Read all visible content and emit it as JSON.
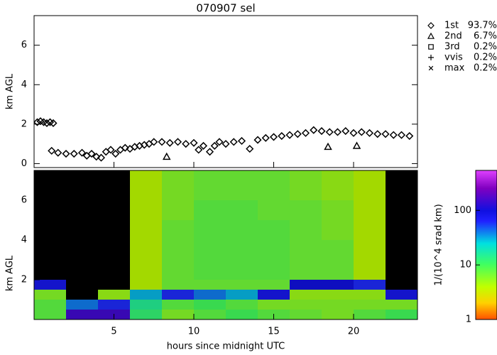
{
  "chart_data": [
    {
      "type": "scatter",
      "title": "070907 sel",
      "ylabel": "km AGL",
      "xlim": [
        0,
        24
      ],
      "xticks": [
        5,
        10,
        15,
        20
      ],
      "ylim": [
        -0.2,
        7.5
      ],
      "yticks": [
        0,
        2,
        4,
        6
      ],
      "series": [
        {
          "name": "1st",
          "share": {
            "value": 93.7,
            "label": "93.7%"
          },
          "marker": "diamond",
          "color": "#000000",
          "x": [
            0.2,
            0.4,
            0.6,
            0.8,
            1.0,
            1.2,
            1.1,
            1.5,
            2.0,
            2.5,
            3.0,
            3.3,
            3.6,
            3.9,
            4.2,
            4.5,
            4.8,
            5.1,
            5.4,
            5.7,
            6.0,
            6.3,
            6.6,
            6.9,
            7.2,
            7.5,
            8.0,
            8.5,
            9.0,
            9.5,
            10.0,
            10.3,
            10.6,
            11.0,
            11.3,
            11.6,
            12.0,
            12.5,
            13.0,
            13.5,
            14.0,
            14.5,
            15.0,
            15.5,
            16.0,
            16.5,
            17.0,
            17.5,
            18.0,
            18.5,
            19.0,
            19.5,
            20.0,
            20.5,
            21.0,
            21.5,
            22.0,
            22.5,
            23.0,
            23.5
          ],
          "values": [
            2.1,
            2.15,
            2.1,
            2.05,
            2.1,
            2.05,
            0.65,
            0.55,
            0.5,
            0.5,
            0.55,
            0.4,
            0.5,
            0.35,
            0.3,
            0.6,
            0.7,
            0.5,
            0.7,
            0.8,
            0.75,
            0.85,
            0.9,
            0.95,
            1.0,
            1.1,
            1.1,
            1.05,
            1.1,
            1.0,
            1.05,
            0.7,
            0.9,
            0.6,
            0.9,
            1.1,
            1.0,
            1.1,
            1.15,
            0.75,
            1.2,
            1.3,
            1.35,
            1.4,
            1.45,
            1.5,
            1.55,
            1.7,
            1.65,
            1.6,
            1.6,
            1.65,
            1.55,
            1.6,
            1.55,
            1.5,
            1.5,
            1.45,
            1.45,
            1.4
          ]
        },
        {
          "name": "2nd",
          "share": {
            "value": 6.7,
            "label": "6.7%"
          },
          "marker": "triangle",
          "color": "#000000",
          "x": [
            8.3,
            18.4,
            20.2
          ],
          "values": [
            0.35,
            0.85,
            0.9
          ]
        },
        {
          "name": "3rd",
          "share": {
            "value": 0.2,
            "label": "0.2%"
          },
          "marker": "square",
          "color": "#000000",
          "x": [],
          "values": []
        },
        {
          "name": "vvis",
          "share": {
            "value": 0.2,
            "label": "0.2%"
          },
          "marker": "plus",
          "color": "#000000",
          "x": [],
          "values": []
        },
        {
          "name": "max",
          "share": {
            "value": 0.2,
            "label": "0.2%"
          },
          "marker": "cross",
          "color": "#000000",
          "x": [],
          "values": []
        }
      ]
    },
    {
      "type": "heatmap",
      "ylabel": "km AGL",
      "xlabel": "hours since midnight UTC",
      "xlim": [
        0,
        24
      ],
      "xticks": [
        5,
        10,
        15,
        20
      ],
      "ylim": [
        0,
        7.5
      ],
      "yticks": [
        2,
        4,
        6
      ],
      "xbins": [
        0,
        2,
        4,
        6,
        8,
        10,
        12,
        14,
        16,
        18,
        20,
        22,
        24
      ],
      "ybins": [
        0,
        0.5,
        1,
        1.5,
        2,
        3,
        4,
        5,
        6,
        7.5
      ],
      "values": [
        [
          8,
          150,
          150,
          12,
          6,
          8,
          10,
          8,
          7,
          6,
          8,
          10
        ],
        [
          8,
          40,
          60,
          15,
          8,
          10,
          8,
          6,
          6,
          6,
          6,
          6
        ],
        [
          6,
          null,
          5,
          30,
          60,
          40,
          30,
          80,
          5,
          5,
          5,
          80
        ],
        [
          80,
          null,
          null,
          4,
          7,
          7,
          7,
          7,
          100,
          100,
          60,
          null
        ],
        [
          null,
          null,
          null,
          4,
          7,
          8,
          8,
          8,
          7,
          7,
          4,
          null
        ],
        [
          null,
          null,
          null,
          4,
          7,
          8,
          8,
          8,
          7,
          7,
          4,
          null
        ],
        [
          null,
          null,
          null,
          4,
          7,
          8,
          8,
          8,
          7,
          6,
          4,
          null
        ],
        [
          null,
          null,
          null,
          4,
          6,
          8,
          8,
          7,
          7,
          6,
          4,
          null
        ],
        [
          null,
          null,
          null,
          4,
          6,
          7,
          7,
          7,
          6,
          5,
          4,
          null
        ]
      ],
      "log_color": true,
      "clim": [
        1,
        540
      ],
      "cticks": [
        1,
        10,
        100
      ],
      "colorbar_label": "1/(10^4 srad km)",
      "missing_color": "#000000"
    }
  ]
}
